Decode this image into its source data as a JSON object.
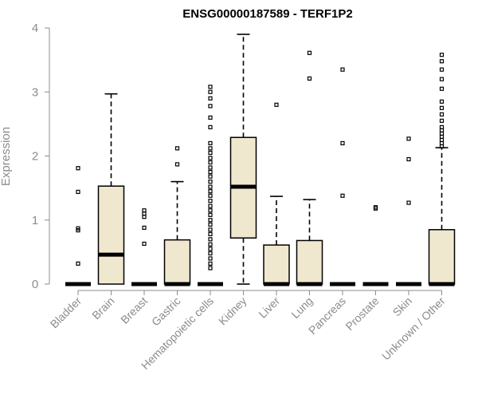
{
  "chart_data": {
    "type": "boxplot",
    "title": "ENSG00000187589 - TERF1P2",
    "xlabel": "",
    "ylabel": "Expression",
    "ylim": [
      0,
      4
    ],
    "yticks": [
      0,
      1,
      2,
      3,
      4
    ],
    "box_fill": "#efe8cf",
    "axis_color": "#8c8c8c",
    "categories": [
      "Bladder",
      "Brain",
      "Breast",
      "Gastric",
      "Hematopoietic cells",
      "Kidney",
      "Liver",
      "Lung",
      "Pancreas",
      "Prostate",
      "Skin",
      "Unknown / Other"
    ],
    "boxes": [
      {
        "name": "Bladder",
        "q1": 0,
        "median": 0,
        "q3": 0,
        "whisker_low": 0,
        "whisker_high": 0,
        "outliers": [
          0.32,
          0.84,
          0.87,
          1.44,
          1.81
        ]
      },
      {
        "name": "Brain",
        "q1": 0,
        "median": 0.46,
        "q3": 1.53,
        "whisker_low": 0,
        "whisker_high": 2.97,
        "outliers": []
      },
      {
        "name": "Breast",
        "q1": 0,
        "median": 0,
        "q3": 0,
        "whisker_low": 0,
        "whisker_high": 0,
        "outliers": [
          0.63,
          0.88,
          1.05,
          1.1,
          1.15
        ]
      },
      {
        "name": "Gastric",
        "q1": 0,
        "median": 0,
        "q3": 0.69,
        "whisker_low": 0,
        "whisker_high": 1.6,
        "outliers": [
          1.87,
          2.12
        ]
      },
      {
        "name": "Hematopoietic cells",
        "q1": 0,
        "median": 0,
        "q3": 0,
        "whisker_low": 0,
        "whisker_high": 0,
        "outliers": [
          0.25,
          0.32,
          0.4,
          0.48,
          0.55,
          0.62,
          0.7,
          0.78,
          0.85,
          0.93,
          1.0,
          1.08,
          1.15,
          1.22,
          1.3,
          1.38,
          1.45,
          1.52,
          1.6,
          1.68,
          1.75,
          1.82,
          1.9,
          1.97,
          2.05,
          2.12,
          2.2,
          2.45,
          2.6,
          2.78,
          2.9,
          3.0,
          3.08
        ]
      },
      {
        "name": "Kidney",
        "q1": 0.72,
        "median": 1.52,
        "q3": 2.29,
        "whisker_low": 0,
        "whisker_high": 3.9,
        "outliers": []
      },
      {
        "name": "Liver",
        "q1": 0,
        "median": 0,
        "q3": 0.61,
        "whisker_low": 0,
        "whisker_high": 1.37,
        "outliers": [
          2.8
        ]
      },
      {
        "name": "Lung",
        "q1": 0,
        "median": 0,
        "q3": 0.68,
        "whisker_low": 0,
        "whisker_high": 1.32,
        "outliers": [
          3.21,
          3.61
        ]
      },
      {
        "name": "Pancreas",
        "q1": 0,
        "median": 0,
        "q3": 0,
        "whisker_low": 0,
        "whisker_high": 0,
        "outliers": [
          1.38,
          2.2,
          3.35
        ]
      },
      {
        "name": "Prostate",
        "q1": 0,
        "median": 0,
        "q3": 0,
        "whisker_low": 0,
        "whisker_high": 0,
        "outliers": [
          1.18,
          1.2
        ]
      },
      {
        "name": "Skin",
        "q1": 0,
        "median": 0,
        "q3": 0,
        "whisker_low": 0,
        "whisker_high": 0,
        "outliers": [
          1.27,
          1.95,
          2.27
        ]
      },
      {
        "name": "Unknown / Other",
        "q1": 0,
        "median": 0,
        "q3": 0.85,
        "whisker_low": 0,
        "whisker_high": 2.13,
        "outliers": [
          2.15,
          2.2,
          2.25,
          2.3,
          2.35,
          2.4,
          2.45,
          2.55,
          2.65,
          2.75,
          2.85,
          3.05,
          3.2,
          3.35,
          3.48,
          3.58
        ]
      }
    ]
  }
}
